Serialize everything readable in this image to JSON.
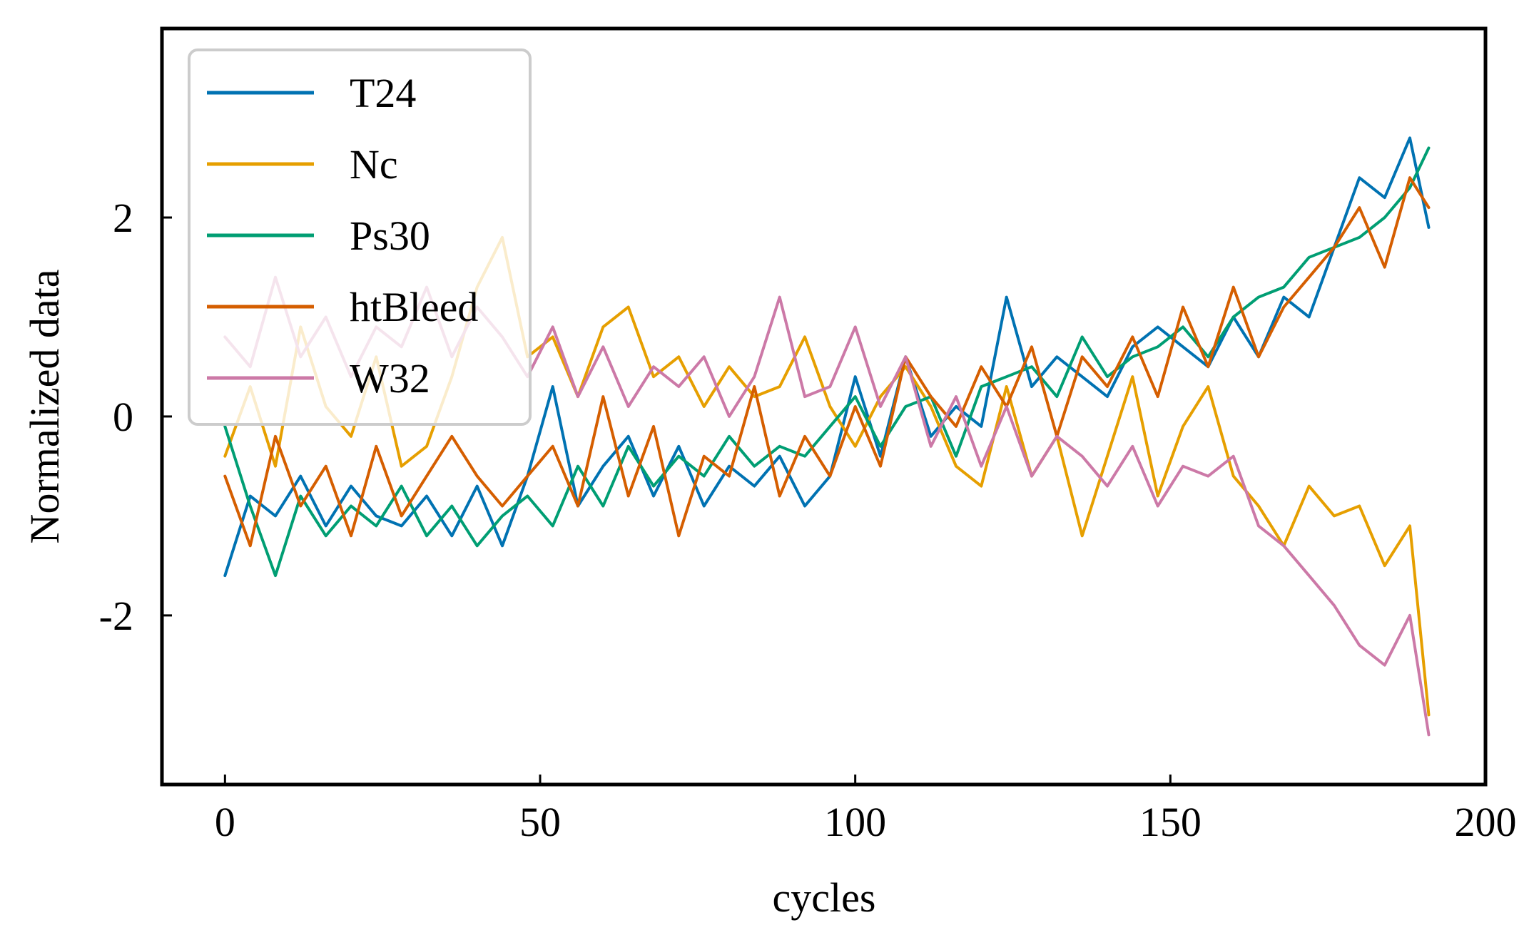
{
  "chart_data": {
    "type": "line",
    "title": "",
    "xlabel": "cycles",
    "ylabel": "Normalized data",
    "xlim": [
      -10,
      200
    ],
    "ylim": [
      -3.7,
      3.9
    ],
    "xticks": [
      0,
      50,
      100,
      150,
      200
    ],
    "yticks": [
      -2,
      0,
      2
    ],
    "ytick_labels": [
      "-2",
      "0",
      "2"
    ],
    "grid": false,
    "legend_position": "top-left",
    "series": [
      {
        "name": "T24",
        "color": "#0072b2",
        "x": [
          0,
          4,
          8,
          12,
          16,
          20,
          24,
          28,
          32,
          36,
          40,
          44,
          48,
          52,
          56,
          60,
          64,
          68,
          72,
          76,
          80,
          84,
          88,
          92,
          96,
          100,
          104,
          108,
          112,
          116,
          120,
          124,
          128,
          132,
          136,
          140,
          144,
          148,
          152,
          156,
          160,
          164,
          168,
          172,
          176,
          180,
          184,
          188,
          191
        ],
        "values": [
          -1.6,
          -0.8,
          -1.0,
          -0.6,
          -1.1,
          -0.7,
          -1.0,
          -1.1,
          -0.8,
          -1.2,
          -0.7,
          -1.3,
          -0.6,
          0.3,
          -0.9,
          -0.5,
          -0.2,
          -0.8,
          -0.3,
          -0.9,
          -0.5,
          -0.7,
          -0.4,
          -0.9,
          -0.6,
          0.4,
          -0.4,
          0.6,
          -0.2,
          0.1,
          -0.1,
          1.2,
          0.3,
          0.6,
          0.4,
          0.2,
          0.7,
          0.9,
          0.7,
          0.5,
          1.0,
          0.6,
          1.2,
          1.0,
          1.7,
          2.4,
          2.2,
          2.8,
          1.9
        ]
      },
      {
        "name": "Nc",
        "color": "#e69f00",
        "x": [
          0,
          4,
          8,
          12,
          16,
          20,
          24,
          28,
          32,
          36,
          40,
          44,
          48,
          52,
          56,
          60,
          64,
          68,
          72,
          76,
          80,
          84,
          88,
          92,
          96,
          100,
          104,
          108,
          112,
          116,
          120,
          124,
          128,
          132,
          136,
          140,
          144,
          148,
          152,
          156,
          160,
          164,
          168,
          172,
          176,
          180,
          184,
          188,
          191
        ],
        "values": [
          -0.4,
          0.3,
          -0.5,
          0.9,
          0.1,
          -0.2,
          0.6,
          -0.5,
          -0.3,
          0.4,
          1.3,
          1.8,
          0.6,
          0.8,
          0.2,
          0.9,
          1.1,
          0.4,
          0.6,
          0.1,
          0.5,
          0.2,
          0.3,
          0.8,
          0.1,
          -0.3,
          0.2,
          0.5,
          0.1,
          -0.5,
          -0.7,
          0.3,
          -0.6,
          -0.2,
          -1.2,
          -0.4,
          0.4,
          -0.8,
          -0.1,
          0.3,
          -0.6,
          -0.9,
          -1.3,
          -0.7,
          -1.0,
          -0.9,
          -1.5,
          -1.1,
          -3.0
        ]
      },
      {
        "name": "Ps30",
        "color": "#009e73",
        "x": [
          0,
          4,
          8,
          12,
          16,
          20,
          24,
          28,
          32,
          36,
          40,
          44,
          48,
          52,
          56,
          60,
          64,
          68,
          72,
          76,
          80,
          84,
          88,
          92,
          96,
          100,
          104,
          108,
          112,
          116,
          120,
          124,
          128,
          132,
          136,
          140,
          144,
          148,
          152,
          156,
          160,
          164,
          168,
          172,
          176,
          180,
          184,
          188,
          191
        ],
        "values": [
          -0.1,
          -0.9,
          -1.6,
          -0.8,
          -1.2,
          -0.9,
          -1.1,
          -0.7,
          -1.2,
          -0.9,
          -1.3,
          -1.0,
          -0.8,
          -1.1,
          -0.5,
          -0.9,
          -0.3,
          -0.7,
          -0.4,
          -0.6,
          -0.2,
          -0.5,
          -0.3,
          -0.4,
          -0.1,
          0.2,
          -0.3,
          0.1,
          0.2,
          -0.4,
          0.3,
          0.4,
          0.5,
          0.2,
          0.8,
          0.4,
          0.6,
          0.7,
          0.9,
          0.6,
          1.0,
          1.2,
          1.3,
          1.6,
          1.7,
          1.8,
          2.0,
          2.3,
          2.7
        ]
      },
      {
        "name": "htBleed",
        "color": "#d55e00",
        "x": [
          0,
          4,
          8,
          12,
          16,
          20,
          24,
          28,
          32,
          36,
          40,
          44,
          48,
          52,
          56,
          60,
          64,
          68,
          72,
          76,
          80,
          84,
          88,
          92,
          96,
          100,
          104,
          108,
          112,
          116,
          120,
          124,
          128,
          132,
          136,
          140,
          144,
          148,
          152,
          156,
          160,
          164,
          168,
          172,
          176,
          180,
          184,
          188,
          191
        ],
        "values": [
          -0.6,
          -1.3,
          -0.2,
          -0.9,
          -0.5,
          -1.2,
          -0.3,
          -1.0,
          -0.6,
          -0.2,
          -0.6,
          -0.9,
          -0.6,
          -0.3,
          -0.9,
          0.2,
          -0.8,
          -0.1,
          -1.2,
          -0.4,
          -0.6,
          0.3,
          -0.8,
          -0.2,
          -0.6,
          0.1,
          -0.5,
          0.6,
          0.2,
          -0.1,
          0.5,
          0.1,
          0.7,
          -0.2,
          0.6,
          0.3,
          0.8,
          0.2,
          1.1,
          0.5,
          1.3,
          0.6,
          1.1,
          1.4,
          1.7,
          2.1,
          1.5,
          2.4,
          2.1
        ]
      },
      {
        "name": "W32",
        "color": "#cc79a7",
        "x": [
          0,
          4,
          8,
          12,
          16,
          20,
          24,
          28,
          32,
          36,
          40,
          44,
          48,
          52,
          56,
          60,
          64,
          68,
          72,
          76,
          80,
          84,
          88,
          92,
          96,
          100,
          104,
          108,
          112,
          116,
          120,
          124,
          128,
          132,
          136,
          140,
          144,
          148,
          152,
          156,
          160,
          164,
          168,
          172,
          176,
          180,
          184,
          188,
          191
        ],
        "values": [
          0.8,
          0.5,
          1.4,
          0.6,
          1.0,
          0.4,
          0.9,
          0.7,
          1.3,
          0.6,
          1.1,
          0.8,
          0.4,
          0.9,
          0.2,
          0.7,
          0.1,
          0.5,
          0.3,
          0.6,
          0.0,
          0.4,
          1.2,
          0.2,
          0.3,
          0.9,
          0.1,
          0.6,
          -0.3,
          0.2,
          -0.5,
          0.1,
          -0.6,
          -0.2,
          -0.4,
          -0.7,
          -0.3,
          -0.9,
          -0.5,
          -0.6,
          -0.4,
          -1.1,
          -1.3,
          -1.6,
          -1.9,
          -2.3,
          -2.5,
          -2.0,
          -3.2
        ]
      }
    ]
  }
}
